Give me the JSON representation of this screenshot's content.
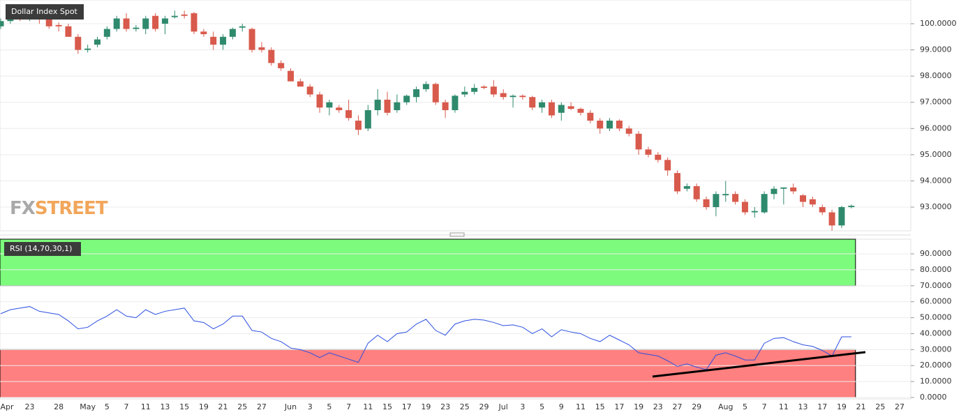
{
  "chart_data": {
    "type": "candlestick",
    "title": "Dollar Index Spot",
    "logo": {
      "prefix": "FX",
      "suffix": "STREET"
    },
    "categories": [
      "Apr",
      null,
      null,
      "23",
      null,
      null,
      "28",
      null,
      null,
      "May",
      null,
      "5",
      null,
      "7",
      null,
      "11",
      null,
      "13",
      null,
      "15",
      null,
      "19",
      null,
      "21",
      null,
      "25",
      null,
      "27",
      null,
      null,
      "Jun",
      null,
      "3",
      null,
      "5",
      null,
      "7",
      null,
      "11",
      null,
      "15",
      null,
      "17",
      null,
      "19",
      null,
      "23",
      null,
      "25",
      null,
      "29",
      null,
      "Jul",
      null,
      "3",
      null,
      "5",
      null,
      "9",
      null,
      "11",
      null,
      "15",
      null,
      "17",
      null,
      "19",
      null,
      "23",
      null,
      "27",
      null,
      "29",
      null,
      null,
      "Aug",
      null,
      "5",
      null,
      "7",
      null,
      "11",
      null,
      "13",
      null,
      "17",
      null,
      "19",
      null,
      "21",
      null,
      "25",
      null,
      "27"
    ],
    "open": [
      99.9,
      100.1,
      100.3,
      100.2,
      100.3,
      100.2,
      99.95,
      99.9,
      99.5,
      99.0,
      99.2,
      99.5,
      99.8,
      100.2,
      99.8,
      99.8,
      100.3,
      100.0,
      100.25,
      100.35,
      100.4,
      99.7,
      99.5,
      99.2,
      99.5,
      99.85,
      99.8,
      99.1,
      99.0,
      98.5,
      98.2,
      97.8,
      97.6,
      97.3,
      96.8,
      96.8,
      96.7,
      96.3,
      96.0,
      96.7,
      97.1,
      96.7,
      97.0,
      97.2,
      97.5,
      97.7,
      97.0,
      96.7,
      97.3,
      97.4,
      97.6,
      97.6,
      97.35,
      97.2,
      97.25,
      97.2,
      96.8,
      97.0,
      96.6,
      96.85,
      96.75,
      96.6,
      96.3,
      96.0,
      96.3,
      96.0,
      95.8,
      95.2,
      95.0,
      94.8,
      94.3,
      93.7,
      93.8,
      93.3,
      93.0,
      93.45,
      93.5,
      93.2,
      92.8,
      92.8,
      93.5,
      93.7,
      93.75,
      93.45,
      93.3,
      93.0,
      92.8,
      92.3,
      93.0,
      null,
      null,
      null,
      null,
      null
    ],
    "high": [
      100.2,
      100.4,
      100.5,
      100.4,
      100.4,
      100.4,
      100.05,
      100.0,
      99.6,
      99.2,
      99.5,
      99.9,
      100.3,
      100.4,
      99.95,
      100.3,
      100.4,
      100.3,
      100.5,
      100.5,
      100.45,
      99.8,
      99.7,
      99.6,
      99.85,
      100.0,
      99.85,
      99.3,
      99.1,
      98.6,
      98.3,
      97.9,
      97.7,
      97.4,
      97.1,
      96.9,
      97.1,
      96.5,
      96.9,
      97.5,
      97.4,
      97.3,
      97.3,
      97.6,
      97.8,
      97.75,
      97.1,
      97.3,
      97.6,
      97.7,
      97.65,
      97.85,
      97.5,
      97.3,
      97.3,
      97.25,
      97.1,
      97.1,
      97.0,
      97.0,
      96.8,
      96.7,
      96.4,
      96.4,
      96.35,
      96.1,
      95.9,
      95.3,
      95.1,
      94.9,
      94.4,
      93.9,
      93.9,
      93.4,
      93.6,
      94.0,
      93.6,
      93.3,
      93.0,
      93.6,
      93.8,
      93.75,
      93.9,
      93.5,
      93.4,
      93.1,
      92.9,
      93.05,
      93.1,
      null,
      null,
      null,
      null,
      null
    ],
    "low": [
      99.8,
      100.0,
      100.1,
      100.1,
      100.0,
      99.8,
      99.7,
      99.5,
      98.85,
      98.9,
      99.1,
      99.4,
      99.7,
      99.7,
      99.7,
      99.6,
      99.7,
      99.6,
      100.2,
      100.2,
      99.6,
      99.5,
      99.0,
      99.0,
      99.4,
      99.7,
      98.9,
      98.9,
      98.4,
      98.2,
      97.8,
      97.6,
      97.2,
      96.6,
      96.5,
      96.6,
      96.3,
      95.75,
      95.9,
      96.5,
      96.5,
      96.6,
      96.9,
      97.0,
      97.4,
      96.9,
      96.4,
      96.6,
      97.2,
      97.3,
      97.5,
      97.2,
      97.1,
      96.8,
      97.1,
      96.7,
      96.6,
      96.4,
      96.3,
      96.7,
      96.5,
      96.2,
      95.8,
      95.9,
      95.9,
      95.7,
      95.0,
      94.9,
      94.7,
      94.2,
      93.5,
      93.6,
      93.2,
      92.9,
      92.65,
      93.2,
      93.1,
      92.7,
      92.6,
      92.75,
      93.3,
      93.1,
      93.5,
      93.0,
      93.0,
      92.7,
      92.1,
      92.2,
      92.95,
      null,
      null,
      null,
      null,
      null
    ],
    "close": [
      100.1,
      100.3,
      100.2,
      100.3,
      100.2,
      99.9,
      99.9,
      99.5,
      99.0,
      99.05,
      99.4,
      99.8,
      100.2,
      99.8,
      99.85,
      100.2,
      99.8,
      100.2,
      100.3,
      100.3,
      99.7,
      99.6,
      99.2,
      99.5,
      99.8,
      99.9,
      99.0,
      99.0,
      98.5,
      98.3,
      97.8,
      97.6,
      97.3,
      96.8,
      97.0,
      96.7,
      96.4,
      95.95,
      96.7,
      97.1,
      96.6,
      97.0,
      97.25,
      97.5,
      97.7,
      97.0,
      96.7,
      97.25,
      97.4,
      97.55,
      97.55,
      97.3,
      97.2,
      97.25,
      97.2,
      96.8,
      97.0,
      96.5,
      96.9,
      96.75,
      96.6,
      96.3,
      96.0,
      96.3,
      96.0,
      95.8,
      95.2,
      95.0,
      94.8,
      94.4,
      93.6,
      93.8,
      93.3,
      93.0,
      93.5,
      93.5,
      93.2,
      92.8,
      92.85,
      93.5,
      93.7,
      93.75,
      93.6,
      93.2,
      93.1,
      92.8,
      92.3,
      93.0,
      93.05,
      null,
      null,
      null,
      null,
      null
    ],
    "up_color": "#2f8a6d",
    "down_color": "#d85a4c",
    "ylim": [
      92.095,
      100.905
    ],
    "yticks": [
      {
        "value": 93,
        "label": "93.0000"
      },
      {
        "value": 94,
        "label": "94.0000"
      },
      {
        "value": 95,
        "label": "95.0000"
      },
      {
        "value": 96,
        "label": "96.0000"
      },
      {
        "value": 97,
        "label": "97.0000"
      },
      {
        "value": 98,
        "label": "98.0000"
      },
      {
        "value": 99,
        "label": "99.0000"
      },
      {
        "value": 100,
        "label": "100.0000"
      }
    ],
    "grid": true,
    "indicator": {
      "type": "line",
      "title": "RSI (14,70,30,1)",
      "values": [
        52.5,
        55,
        56,
        57,
        54,
        53,
        52,
        48,
        43,
        44,
        48,
        51,
        55,
        51,
        50,
        55,
        52,
        54,
        55,
        56,
        48,
        47,
        43,
        46,
        51,
        51,
        42,
        41,
        37,
        35,
        31,
        30,
        28,
        25,
        28,
        26,
        24,
        22,
        34,
        39,
        35,
        40,
        41,
        46,
        49,
        42,
        39,
        46,
        48,
        49,
        48.5,
        47,
        45,
        45.5,
        44,
        40,
        43,
        38,
        42.5,
        41,
        40,
        37,
        35,
        39,
        36,
        33,
        28,
        27,
        26,
        23,
        19.5,
        21,
        19,
        17.5,
        26.5,
        28,
        26,
        23.5,
        23.5,
        34,
        37,
        37.5,
        35,
        33,
        32,
        29.5,
        26,
        38,
        38,
        null,
        null,
        null,
        null,
        null
      ],
      "color": "#2b4fe0",
      "ylim": [
        0,
        99.2
      ],
      "yticks": [
        {
          "value": 0,
          "label": "0.0000"
        },
        {
          "value": 10,
          "label": "10.0000"
        },
        {
          "value": 20,
          "label": "20.0000"
        },
        {
          "value": 30,
          "label": "30.0000"
        },
        {
          "value": 40,
          "label": "40.0000"
        },
        {
          "value": 50,
          "label": "50.0000"
        },
        {
          "value": 60,
          "label": "60.0000"
        },
        {
          "value": 70,
          "label": "70.0000"
        },
        {
          "value": 80,
          "label": "80.0000"
        },
        {
          "value": 90,
          "label": "90.0000"
        }
      ],
      "overbought": 70,
      "oversold": 30,
      "overbought_color": "#7cfb7c",
      "oversold_color": "#ff8080"
    }
  }
}
